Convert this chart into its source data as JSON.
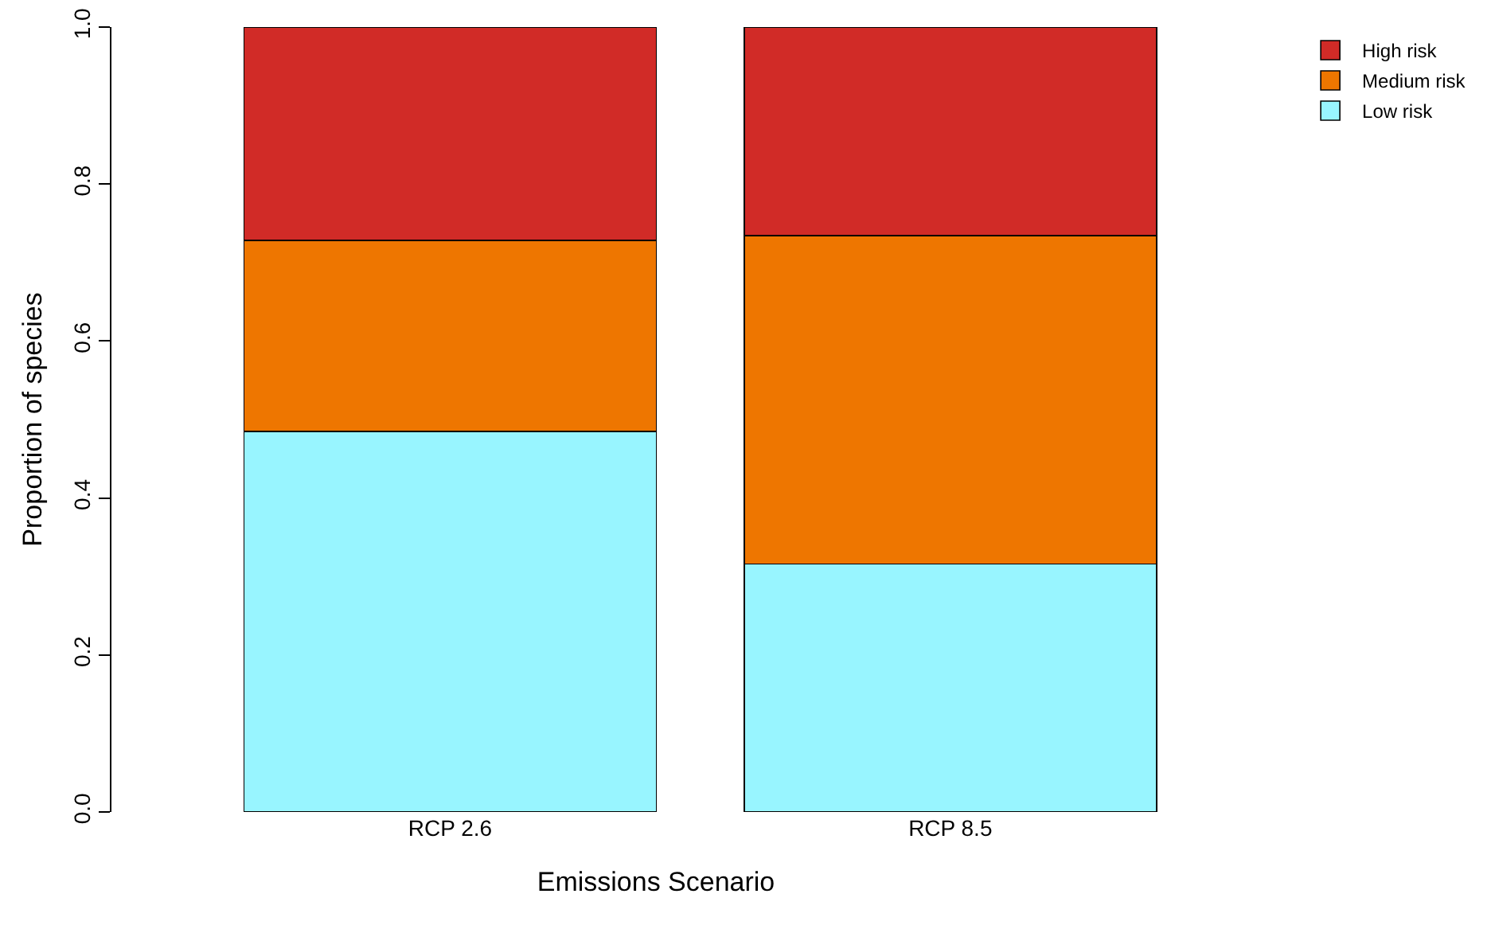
{
  "chart_data": {
    "type": "bar",
    "stacked": true,
    "xlabel": "Emissions Scenario",
    "ylabel": "Proportion of species",
    "categories": [
      "RCP 2.6",
      "RCP 8.5"
    ],
    "series": [
      {
        "name": "Low risk",
        "color": "#98f5ff",
        "values": [
          0.485,
          0.316
        ]
      },
      {
        "name": "Medium risk",
        "color": "#ee7600",
        "values": [
          0.243,
          0.418
        ]
      },
      {
        "name": "High risk",
        "color": "#d12b27",
        "values": [
          0.272,
          0.266
        ]
      }
    ],
    "ylim": [
      0,
      1
    ],
    "yticks": [
      {
        "value": 0,
        "label": "0.0"
      },
      {
        "value": 0.2,
        "label": "0.2"
      },
      {
        "value": 0.4,
        "label": "0.4"
      },
      {
        "value": 0.6,
        "label": "0.6"
      },
      {
        "value": 0.8,
        "label": "0.8"
      },
      {
        "value": 1,
        "label": "1.0"
      }
    ],
    "grid": false,
    "legend": "top right"
  }
}
